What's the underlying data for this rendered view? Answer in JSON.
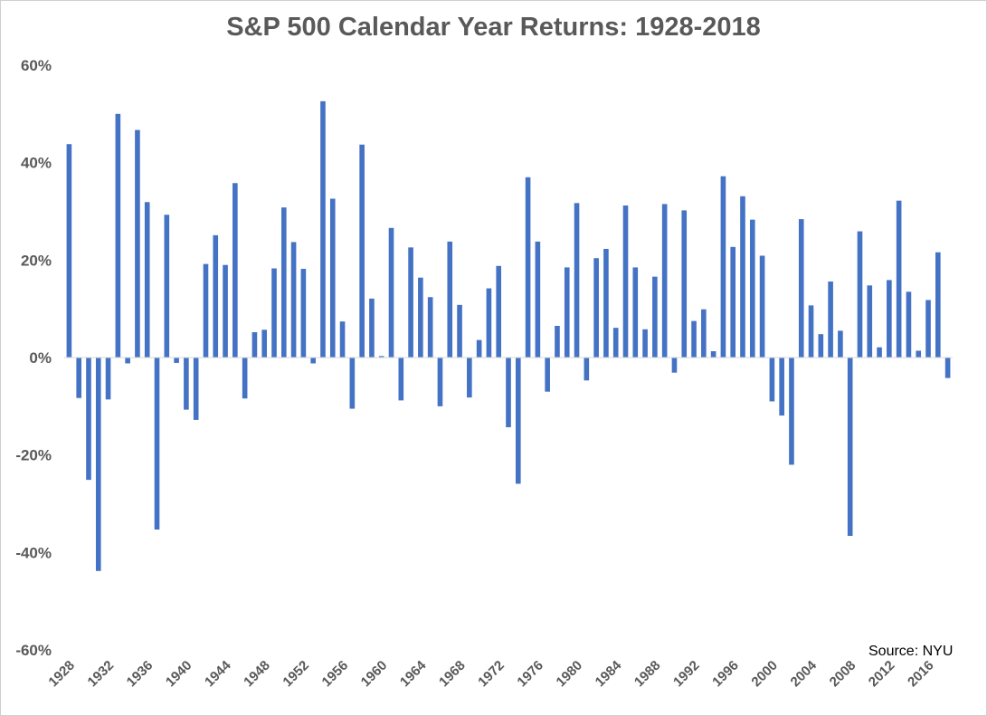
{
  "chart_data": {
    "type": "bar",
    "title": "S&P 500 Calendar Year Returns: 1928-2018",
    "source_note": "Source: NYU",
    "xlabel": "",
    "ylabel": "",
    "ylim": [
      -60,
      60
    ],
    "y_ticks": [
      60,
      40,
      20,
      0,
      -20,
      -40,
      -60
    ],
    "y_tick_labels": [
      "60%",
      "40%",
      "20%",
      "0%",
      "-20%",
      "-40%",
      "-60%"
    ],
    "x_tick_labels": [
      "1928",
      "1932",
      "1936",
      "1940",
      "1944",
      "1948",
      "1952",
      "1956",
      "1960",
      "1964",
      "1968",
      "1972",
      "1976",
      "1980",
      "1984",
      "1988",
      "1992",
      "1996",
      "2000",
      "2004",
      "2008",
      "2012",
      "2016"
    ],
    "bar_color": "#4472C4",
    "categories": [
      1928,
      1929,
      1930,
      1931,
      1932,
      1933,
      1934,
      1935,
      1936,
      1937,
      1938,
      1939,
      1940,
      1941,
      1942,
      1943,
      1944,
      1945,
      1946,
      1947,
      1948,
      1949,
      1950,
      1951,
      1952,
      1953,
      1954,
      1955,
      1956,
      1957,
      1958,
      1959,
      1960,
      1961,
      1962,
      1963,
      1964,
      1965,
      1966,
      1967,
      1968,
      1969,
      1970,
      1971,
      1972,
      1973,
      1974,
      1975,
      1976,
      1977,
      1978,
      1979,
      1980,
      1981,
      1982,
      1983,
      1984,
      1985,
      1986,
      1987,
      1988,
      1989,
      1990,
      1991,
      1992,
      1993,
      1994,
      1995,
      1996,
      1997,
      1998,
      1999,
      2000,
      2001,
      2002,
      2003,
      2004,
      2005,
      2006,
      2007,
      2008,
      2009,
      2010,
      2011,
      2012,
      2013,
      2014,
      2015,
      2016,
      2017,
      2018
    ],
    "values": [
      43.8,
      -8.3,
      -25.1,
      -43.8,
      -8.6,
      50.0,
      -1.2,
      46.7,
      31.9,
      -35.3,
      29.3,
      -1.1,
      -10.7,
      -12.8,
      19.2,
      25.1,
      19.0,
      35.8,
      -8.4,
      5.2,
      5.7,
      18.3,
      30.8,
      23.7,
      18.2,
      -1.2,
      52.6,
      32.6,
      7.4,
      -10.5,
      43.7,
      12.1,
      0.3,
      26.6,
      -8.8,
      22.6,
      16.4,
      12.4,
      -10.0,
      23.8,
      10.8,
      -8.2,
      3.6,
      14.2,
      18.8,
      -14.3,
      -25.9,
      37.0,
      23.8,
      -7.0,
      6.5,
      18.5,
      31.7,
      -4.7,
      20.4,
      22.3,
      6.1,
      31.2,
      18.5,
      5.8,
      16.6,
      31.5,
      -3.1,
      30.2,
      7.5,
      9.9,
      1.3,
      37.2,
      22.7,
      33.1,
      28.3,
      20.9,
      -9.0,
      -11.9,
      -22.0,
      28.4,
      10.7,
      4.8,
      15.6,
      5.5,
      -36.6,
      25.9,
      14.8,
      2.1,
      15.9,
      32.2,
      13.5,
      1.4,
      11.8,
      21.6,
      -4.2
    ]
  }
}
